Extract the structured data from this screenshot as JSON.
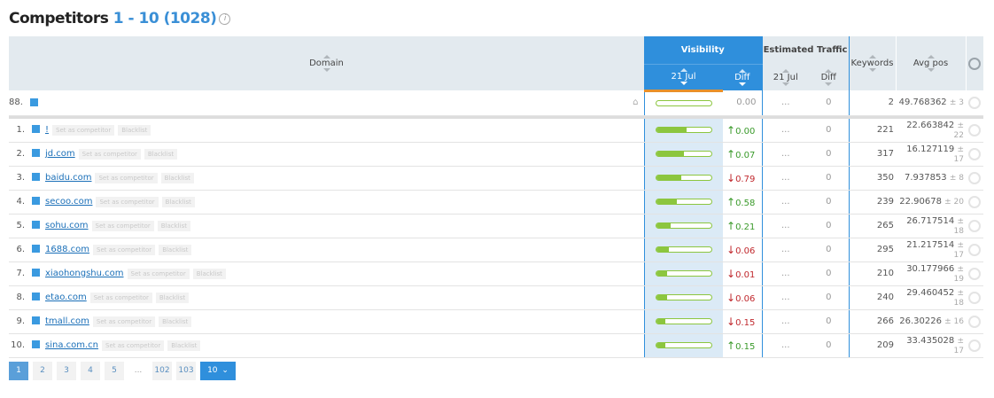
{
  "header": {
    "title": "Competitors",
    "range": "1 - 10 (1028)"
  },
  "columns": {
    "domain": "Domain",
    "visibility": "Visibility",
    "vis_date": "21 Jul",
    "vis_diff": "Diff",
    "traffic": "Estimated Traffic",
    "traffic_date": "21 Jul",
    "traffic_diff": "Diff",
    "keywords": "Keywords",
    "avg_pos": "Avg pos"
  },
  "own": {
    "rank": "88.",
    "domain": "",
    "visibility_fill": 0,
    "vis_diff": "0.00",
    "traffic": "...",
    "traffic_diff": "0",
    "keywords": "2",
    "avg_pos": "49.768362",
    "pm": "± 3"
  },
  "actions": {
    "set_competitor": "Set as competitor",
    "blacklist": "Blacklist"
  },
  "rows": [
    {
      "rank": "1.",
      "domain": "!",
      "visibility_fill": 0.55,
      "dir": "up",
      "vis_diff": "0.00",
      "traffic": "...",
      "traffic_diff": "0",
      "keywords": "221",
      "avg_pos": "22.663842",
      "pm": "± 22"
    },
    {
      "rank": "2.",
      "domain": "jd.com",
      "visibility_fill": 0.5,
      "dir": "up",
      "vis_diff": "0.07",
      "traffic": "...",
      "traffic_diff": "0",
      "keywords": "317",
      "avg_pos": "16.127119",
      "pm": "± 17"
    },
    {
      "rank": "3.",
      "domain": "baidu.com",
      "visibility_fill": 0.45,
      "dir": "down",
      "vis_diff": "0.79",
      "traffic": "...",
      "traffic_diff": "0",
      "keywords": "350",
      "avg_pos": "7.937853",
      "pm": "± 8"
    },
    {
      "rank": "4.",
      "domain": "secoo.com",
      "visibility_fill": 0.37,
      "dir": "up",
      "vis_diff": "0.58",
      "traffic": "...",
      "traffic_diff": "0",
      "keywords": "239",
      "avg_pos": "22.90678",
      "pm": "± 20"
    },
    {
      "rank": "5.",
      "domain": "sohu.com",
      "visibility_fill": 0.27,
      "dir": "up",
      "vis_diff": "0.21",
      "traffic": "...",
      "traffic_diff": "0",
      "keywords": "265",
      "avg_pos": "26.717514",
      "pm": "± 18"
    },
    {
      "rank": "6.",
      "domain": "1688.com",
      "visibility_fill": 0.23,
      "dir": "down",
      "vis_diff": "0.06",
      "traffic": "...",
      "traffic_diff": "0",
      "keywords": "295",
      "avg_pos": "21.217514",
      "pm": "± 17"
    },
    {
      "rank": "7.",
      "domain": "xiaohongshu.com",
      "visibility_fill": 0.2,
      "dir": "down",
      "vis_diff": "0.01",
      "traffic": "...",
      "traffic_diff": "0",
      "keywords": "210",
      "avg_pos": "30.177966",
      "pm": "± 19"
    },
    {
      "rank": "8.",
      "domain": "etao.com",
      "visibility_fill": 0.19,
      "dir": "down",
      "vis_diff": "0.06",
      "traffic": "...",
      "traffic_diff": "0",
      "keywords": "240",
      "avg_pos": "29.460452",
      "pm": "± 18"
    },
    {
      "rank": "9.",
      "domain": "tmall.com",
      "visibility_fill": 0.16,
      "dir": "down",
      "vis_diff": "0.15",
      "traffic": "...",
      "traffic_diff": "0",
      "keywords": "266",
      "avg_pos": "26.30226",
      "pm": "± 16"
    },
    {
      "rank": "10.",
      "domain": "sina.com.cn",
      "visibility_fill": 0.16,
      "dir": "up",
      "vis_diff": "0.15",
      "traffic": "...",
      "traffic_diff": "0",
      "keywords": "209",
      "avg_pos": "33.435028",
      "pm": "± 17"
    }
  ],
  "pagination": {
    "pages": [
      "1",
      "2",
      "3",
      "4",
      "5"
    ],
    "ellipsis": "...",
    "last_pages": [
      "102",
      "103"
    ],
    "current": "1",
    "per_page": "10"
  },
  "colors": {
    "accent": "#2f8fdc",
    "bar": "#8cc63f",
    "up": "#3a9a2a",
    "down": "#c0282d",
    "sort_active": "#e8902a"
  }
}
